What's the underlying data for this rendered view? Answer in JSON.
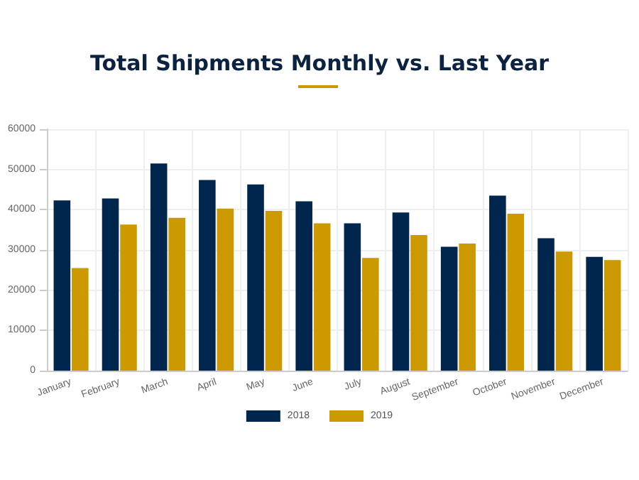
{
  "chart_data": {
    "type": "bar",
    "title": "Total Shipments Monthly vs. Last Year",
    "categories": [
      "January",
      "February",
      "March",
      "April",
      "May",
      "June",
      "July",
      "August",
      "September",
      "October",
      "November",
      "December"
    ],
    "series": [
      {
        "name": "2018",
        "color": "#00264d",
        "values": [
          42300,
          42800,
          51500,
          47400,
          46300,
          42100,
          36600,
          39300,
          30800,
          43500,
          32900,
          28300
        ]
      },
      {
        "name": "2019",
        "color": "#cc9900",
        "values": [
          25500,
          36300,
          38000,
          40300,
          39700,
          36600,
          28000,
          33700,
          31600,
          39000,
          29600,
          27500
        ]
      }
    ],
    "ylim": [
      0,
      60000
    ],
    "yticks": [
      0,
      10000,
      20000,
      30000,
      40000,
      50000,
      60000
    ],
    "grid": true,
    "legend": "bottom"
  }
}
